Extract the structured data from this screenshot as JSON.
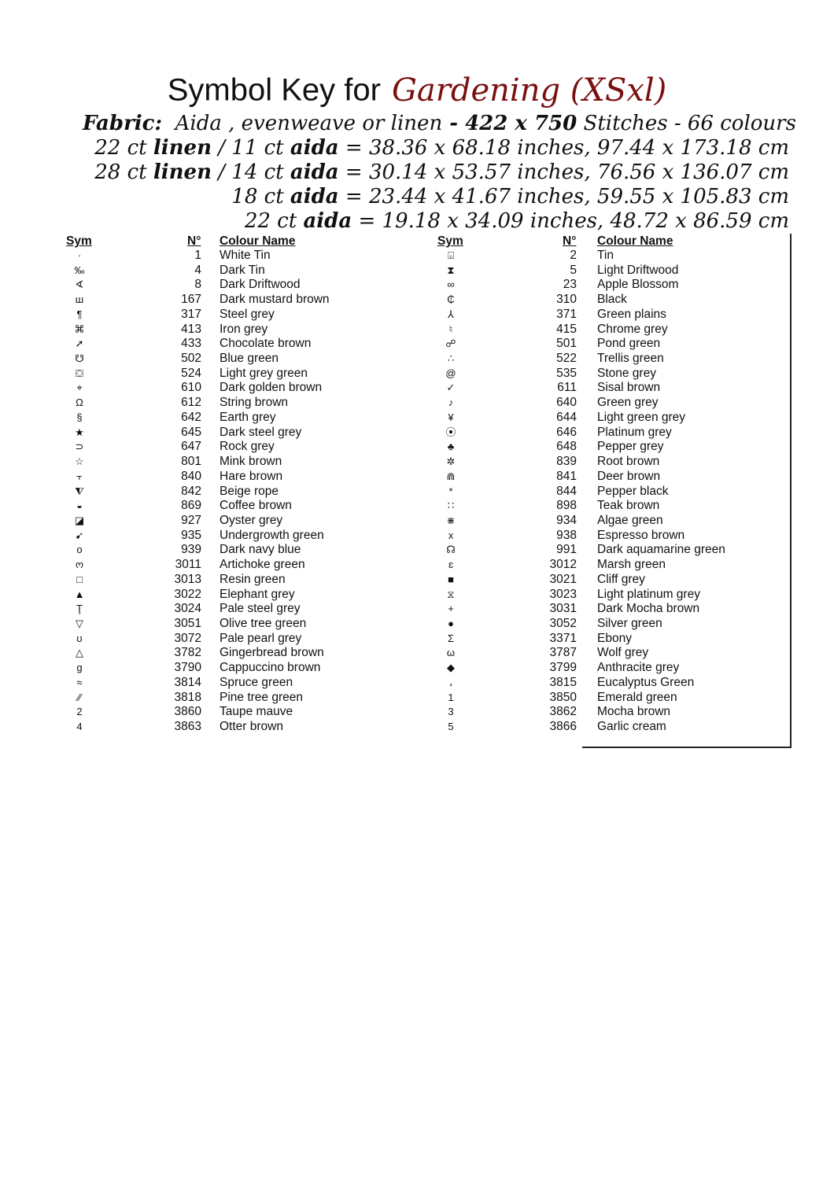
{
  "title": {
    "prefix": "Symbol Key for",
    "pattern": "Gardening (XSxl)"
  },
  "fabric": {
    "label": "Fabric:",
    "text": "Aida , evenweave or  linen",
    "dash": " - ",
    "size": "422 x 750",
    "rest": " Stitches - 66 colours"
  },
  "sizes": [
    {
      "a": "22 ct ",
      "b": "linen",
      "c": " / 11 ct ",
      "d": "aida",
      "e": " = 38.36 x 68.18 inches, 97.44 x 173.18 cm"
    },
    {
      "a": "28 ct ",
      "b": "linen",
      "c": " / 14 ct ",
      "d": "aida",
      "e": " = 30.14 x 53.57 inches, 76.56 x 136.07 cm"
    },
    {
      "a": "18 ct ",
      "b": "",
      "c": "",
      "d": "aida",
      "e": "  = 23.44 x 41.67 inches, 59.55 x 105.83 cm"
    },
    {
      "a": "22 ct ",
      "b": "",
      "c": "",
      "d": "aida",
      "e": " = 19.18 x 34.09 inches, 48.72 x 86.59 cm"
    }
  ],
  "headers": {
    "sym": "Sym",
    "num": "N°",
    "name": "Colour Name"
  },
  "left": [
    [
      "·",
      "1",
      "White Tin"
    ],
    [
      "‰",
      "4",
      "Dark Tin"
    ],
    [
      "∢",
      "8",
      "Dark Driftwood"
    ],
    [
      "ш",
      "167",
      "Dark mustard brown"
    ],
    [
      "¶",
      "317",
      "Steel grey"
    ],
    [
      "⌘",
      "413",
      "Iron grey"
    ],
    [
      "➚",
      "433",
      "Chocolate brown"
    ],
    [
      "☋",
      "502",
      "Blue green"
    ],
    [
      "⛋",
      "524",
      "Light grey green"
    ],
    [
      "⌖",
      "610",
      "Dark golden brown"
    ],
    [
      "Ω",
      "612",
      "String brown"
    ],
    [
      "§",
      "642",
      "Earth grey"
    ],
    [
      "★",
      "645",
      "Dark steel grey"
    ],
    [
      "⊃",
      "647",
      "Rock grey"
    ],
    [
      "☆",
      "801",
      "Mink brown"
    ],
    [
      "⫟",
      "840",
      "Hare brown"
    ],
    [
      "⧨",
      "842",
      "Beige rope"
    ],
    [
      "◒",
      "869",
      "Coffee brown"
    ],
    [
      "◪",
      "927",
      "Oyster grey"
    ],
    [
      "➹",
      "935",
      "Undergrowth green"
    ],
    [
      "o",
      "939",
      "Dark navy blue"
    ],
    [
      "ო",
      "3011",
      "Artichoke green"
    ],
    [
      "□",
      "3013",
      "Resin green"
    ],
    [
      "▲",
      "3022",
      "Elephant grey"
    ],
    [
      "Ţ",
      "3024",
      "Pale steel grey"
    ],
    [
      "▽",
      "3051",
      "Olive tree green"
    ],
    [
      "ʊ",
      "3072",
      "Pale pearl grey"
    ],
    [
      "△",
      "3782",
      "Gingerbread brown"
    ],
    [
      "g",
      "3790",
      "Cappuccino brown"
    ],
    [
      "≈",
      "3814",
      "Spruce green"
    ],
    [
      "⁄⁄",
      "3818",
      "Pine tree green"
    ],
    [
      "2",
      "3860",
      "Taupe mauve"
    ],
    [
      "4",
      "3863",
      "Otter brown"
    ]
  ],
  "right": [
    [
      "⌻",
      "2",
      "Tin"
    ],
    [
      "⧗",
      "5",
      "Light Driftwood"
    ],
    [
      "∞",
      "23",
      "Apple Blossom"
    ],
    [
      "₵",
      "310",
      "Black"
    ],
    [
      "⅄",
      "371",
      "Green plains"
    ],
    [
      "♮",
      "415",
      "Chrome grey"
    ],
    [
      "☍",
      "501",
      "Pond green"
    ],
    [
      "∴",
      "522",
      "Trellis green"
    ],
    [
      "@",
      "535",
      "Stone grey"
    ],
    [
      "✓",
      "611",
      "Sisal brown"
    ],
    [
      "♪",
      "640",
      "Green grey"
    ],
    [
      "¥",
      "644",
      "Light green grey"
    ],
    [
      "⦿",
      "646",
      "Platinum grey"
    ],
    [
      "♣",
      "648",
      "Pepper grey"
    ],
    [
      "✲",
      "839",
      "Root brown"
    ],
    [
      "⋒",
      "841",
      "Deer brown"
    ],
    [
      "*",
      "844",
      "Pepper black"
    ],
    [
      "∷",
      "898",
      "Teak brown"
    ],
    [
      "⋇",
      "934",
      "Algae green"
    ],
    [
      "x",
      "938",
      "Espresso brown"
    ],
    [
      "☊",
      "991",
      "Dark aquamarine green"
    ],
    [
      "ɛ",
      "3012",
      "Marsh green"
    ],
    [
      "■",
      "3021",
      "Cliff grey"
    ],
    [
      "⧖",
      "3023",
      "Light platinum grey"
    ],
    [
      "+",
      "3031",
      "Dark Mocha brown"
    ],
    [
      "●",
      "3052",
      "Silver green"
    ],
    [
      "Σ",
      "3371",
      "Ebony"
    ],
    [
      "ω",
      "3787",
      "Wolf grey"
    ],
    [
      "◆",
      "3799",
      "Anthracite grey"
    ],
    [
      "،",
      "3815",
      "Eucalyptus Green"
    ],
    [
      "1",
      "3850",
      "Emerald green"
    ],
    [
      "3",
      "3862",
      "Mocha brown"
    ],
    [
      "5",
      "3866",
      "Garlic cream"
    ]
  ],
  "colors": {
    "pattern_title": "#7a1010",
    "text": "#111111"
  }
}
